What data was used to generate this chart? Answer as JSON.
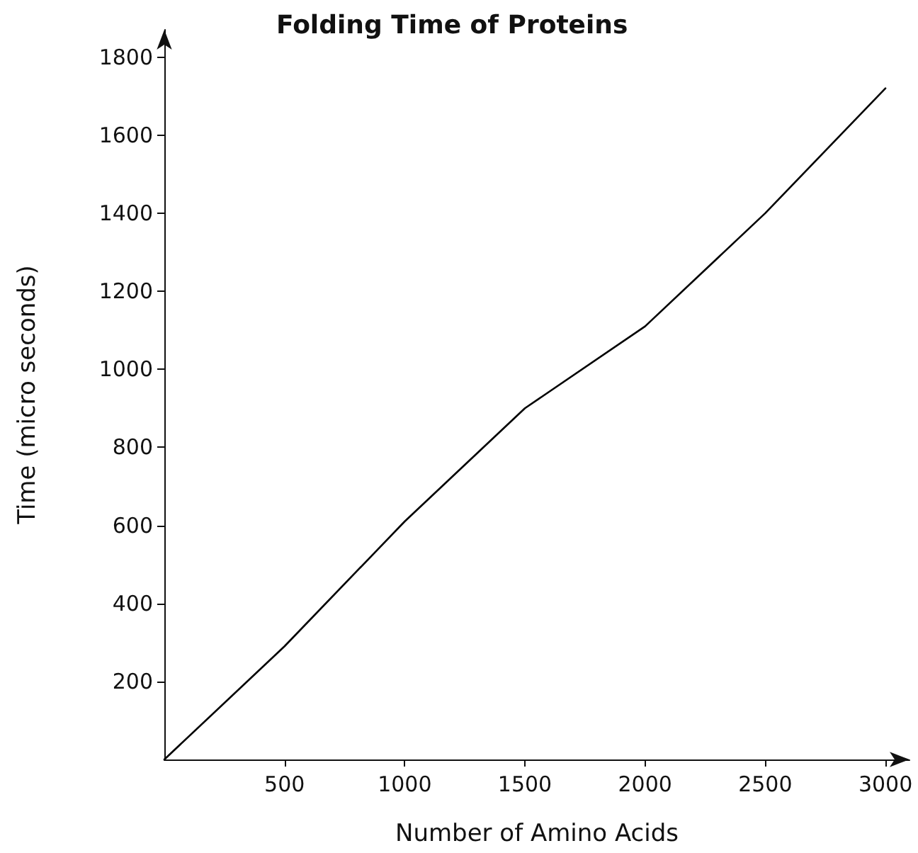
{
  "chart_data": {
    "type": "line",
    "title": "Folding Time of Proteins",
    "xlabel": "Number of Amino Acids",
    "ylabel": "Time (micro seconds)",
    "x": [
      0,
      500,
      1000,
      1500,
      2000,
      2500,
      3000
    ],
    "series": [
      {
        "color": "#000000",
        "values": [
          0,
          290,
          610,
          900,
          1110,
          1400,
          1720
        ]
      }
    ],
    "xlim": [
      0,
      3100
    ],
    "ylim": [
      0,
      1870
    ],
    "xticks": [
      500,
      1000,
      1500,
      2000,
      2500,
      3000
    ],
    "yticks": [
      200,
      400,
      600,
      800,
      1000,
      1200,
      1400,
      1600,
      1800
    ],
    "marker": "none",
    "line_style": "solid"
  }
}
